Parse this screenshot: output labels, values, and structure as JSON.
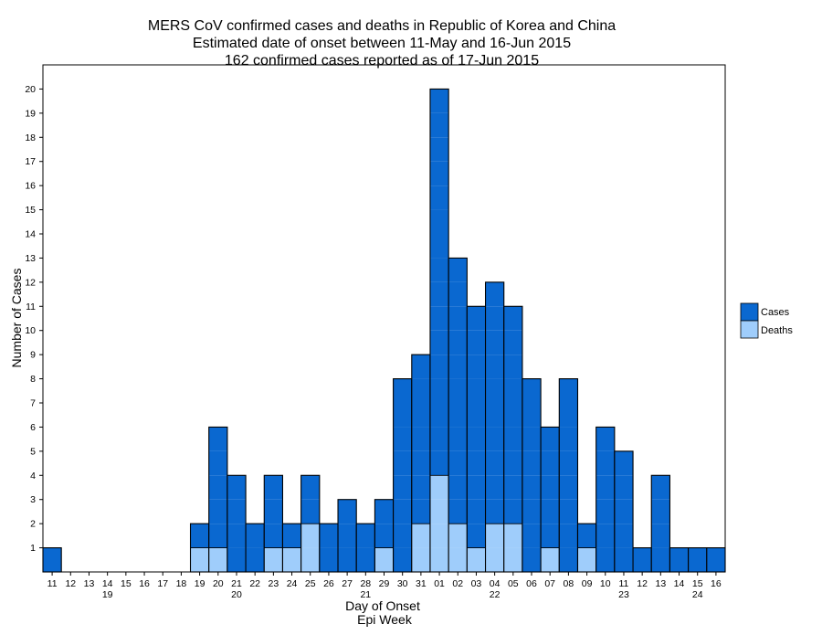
{
  "chart_data": {
    "type": "bar",
    "title_lines": [
      "MERS CoV confirmed cases and deaths in Republic of Korea and China",
      "Estimated date of onset between 11-May and 16-Jun 2015",
      "162 confirmed cases reported as of 17-Jun 2015"
    ],
    "xlabel": "Day of Onset",
    "xlabel2": "Epi Week",
    "ylabel": "Number of Cases",
    "ylim": [
      0,
      21
    ],
    "yticks": [
      1,
      2,
      3,
      4,
      5,
      6,
      7,
      8,
      9,
      10,
      11,
      12,
      13,
      14,
      15,
      16,
      17,
      18,
      19,
      20
    ],
    "categories": [
      "11",
      "12",
      "13",
      "14",
      "15",
      "16",
      "17",
      "18",
      "19",
      "20",
      "21",
      "22",
      "23",
      "24",
      "25",
      "26",
      "27",
      "28",
      "29",
      "30",
      "31",
      "01",
      "02",
      "03",
      "04",
      "05",
      "06",
      "07",
      "08",
      "09",
      "10",
      "11",
      "12",
      "13",
      "14",
      "15",
      "16"
    ],
    "epi_weeks": [
      {
        "week": "19",
        "day_index": 3
      },
      {
        "week": "20",
        "day_index": 10
      },
      {
        "week": "21",
        "day_index": 17
      },
      {
        "week": "22",
        "day_index": 24
      },
      {
        "week": "23",
        "day_index": 31
      },
      {
        "week": "24",
        "day_index": 35
      }
    ],
    "series": [
      {
        "name": "Cases",
        "color": "#0a68d0",
        "values": [
          1,
          0,
          0,
          0,
          0,
          0,
          0,
          0,
          2,
          6,
          4,
          2,
          4,
          2,
          4,
          2,
          3,
          2,
          3,
          8,
          9,
          20,
          13,
          11,
          12,
          11,
          8,
          6,
          8,
          2,
          6,
          5,
          1,
          4,
          1,
          1,
          1
        ]
      },
      {
        "name": "Deaths",
        "color": "#9fcdfb",
        "values": [
          0,
          0,
          0,
          0,
          0,
          0,
          0,
          0,
          1,
          1,
          0,
          0,
          1,
          1,
          2,
          0,
          0,
          0,
          1,
          0,
          2,
          4,
          2,
          1,
          2,
          2,
          0,
          1,
          0,
          1,
          0,
          0,
          0,
          0,
          0,
          0,
          0
        ]
      }
    ],
    "legend": [
      {
        "label": "Cases",
        "color": "#0a68d0"
      },
      {
        "label": "Deaths",
        "color": "#9fcdfb"
      }
    ],
    "legend_position": "right"
  }
}
